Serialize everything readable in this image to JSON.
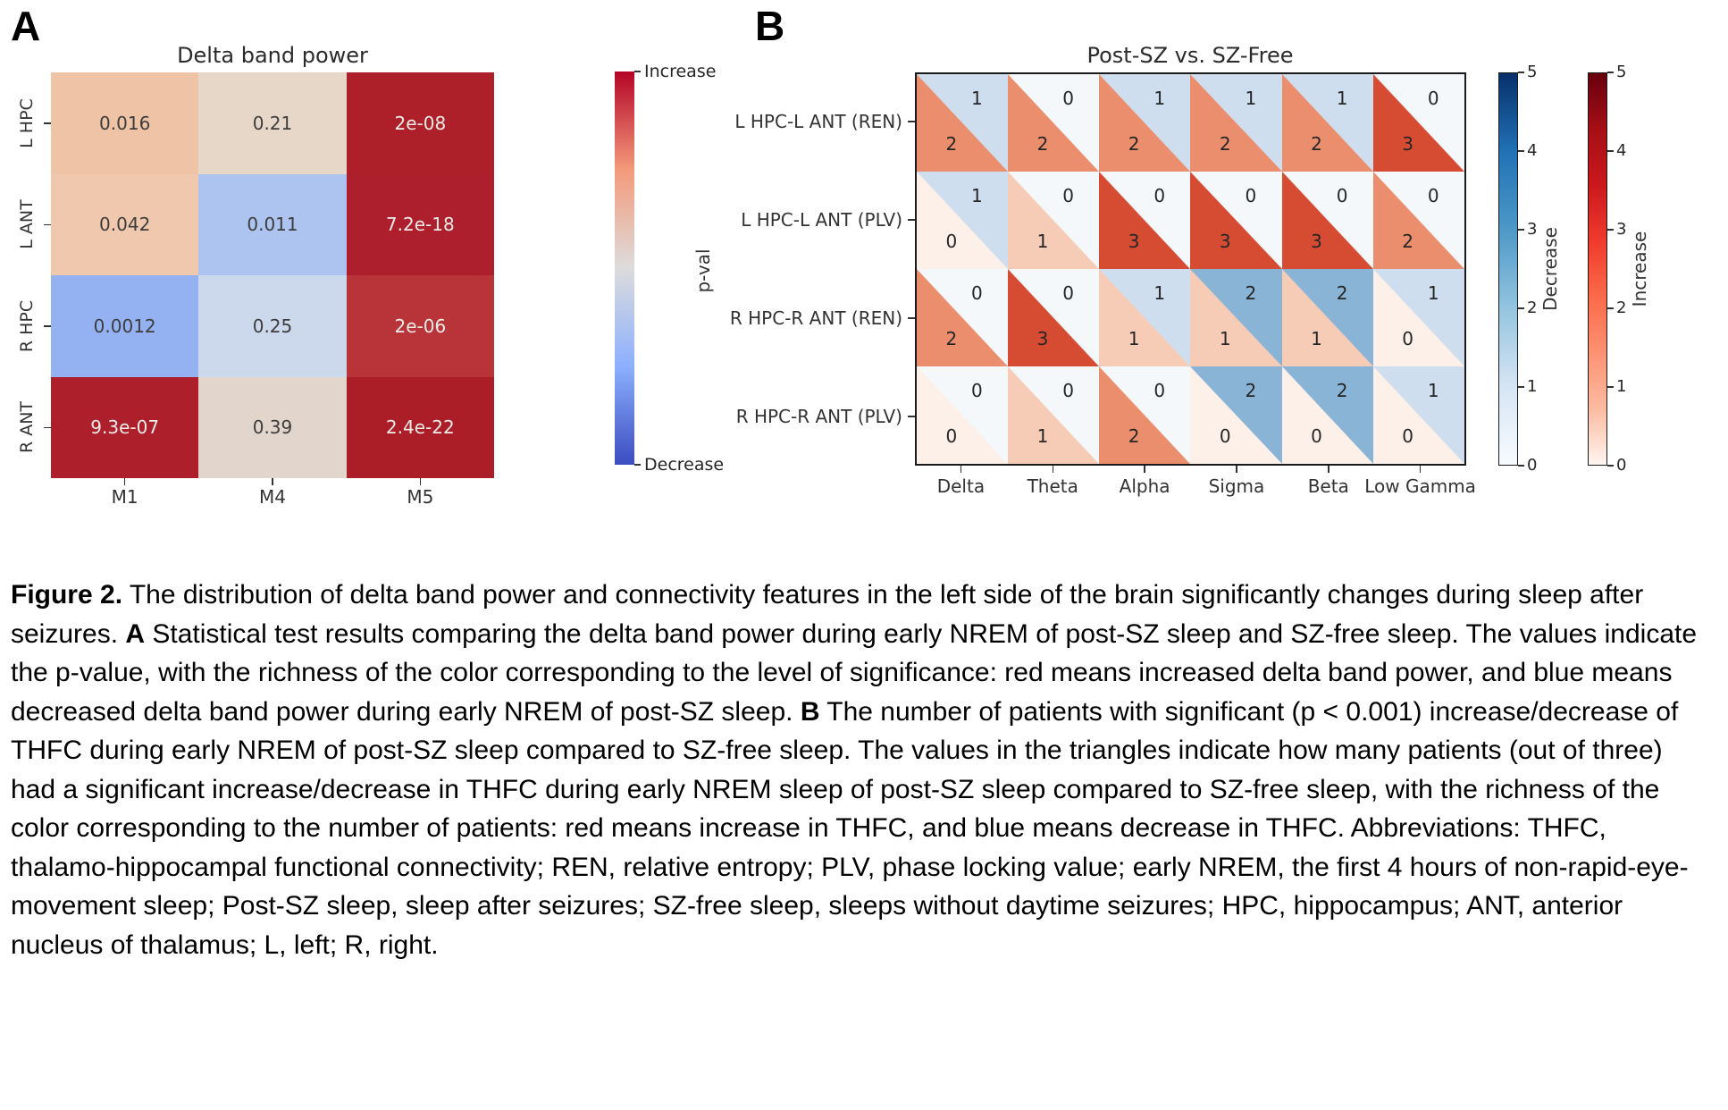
{
  "figure": {
    "panel_a_label": "A",
    "panel_b_label": "B"
  },
  "chart_data": [
    {
      "type": "heatmap",
      "panel": "A",
      "title": "Delta band power",
      "rows": [
        "L HPC",
        "L ANT",
        "R HPC",
        "R ANT"
      ],
      "cols": [
        "M1",
        "M4",
        "M5"
      ],
      "values": [
        [
          "0.016",
          "0.21",
          "2e-08"
        ],
        [
          "0.042",
          "0.011",
          "7.2e-18"
        ],
        [
          "0.0012",
          "0.25",
          "2e-06"
        ],
        [
          "9.3e-07",
          "0.39",
          "2.4e-22"
        ]
      ],
      "cell_colors": [
        [
          "#efc3a6",
          "#e7d7c9",
          "#ad2029"
        ],
        [
          "#f0c8ae",
          "#aec4f0",
          "#ad1f2c"
        ],
        [
          "#94b2f2",
          "#ccd8ec",
          "#b83439"
        ],
        [
          "#ae1f2c",
          "#e2d5cb",
          "#ab1e28"
        ]
      ],
      "cell_text_colors": [
        [
          "#3d3d3d",
          "#3d3d3d",
          "#f2ece9"
        ],
        [
          "#3d3d3d",
          "#3d3d3d",
          "#f2ece9"
        ],
        [
          "#3d3d3d",
          "#3d3d3d",
          "#f2ece9"
        ],
        [
          "#f2ece9",
          "#3d3d3d",
          "#f2ece9"
        ]
      ],
      "colorbar": {
        "top_label": "Increase",
        "bottom_label": "Decrease",
        "axis_label": "p-val",
        "gradient": [
          "#b40426",
          "#f49a7b",
          "#dddcdc",
          "#8cb0fe",
          "#3b4cc0"
        ]
      }
    },
    {
      "type": "split-heatmap",
      "panel": "B",
      "title": "Post-SZ vs. SZ-Free",
      "rows": [
        "L HPC-L ANT (REN)",
        "L HPC-L ANT (PLV)",
        "R HPC-R ANT (REN)",
        "R HPC-R ANT (PLV)"
      ],
      "cols": [
        "Delta",
        "Theta",
        "Alpha",
        "Sigma",
        "Beta",
        "Low Gamma"
      ],
      "series": [
        {
          "name": "increase_counts",
          "values": [
            [
              2,
              2,
              2,
              2,
              2,
              3
            ],
            [
              0,
              1,
              3,
              3,
              3,
              2
            ],
            [
              2,
              3,
              1,
              1,
              1,
              0
            ],
            [
              0,
              1,
              2,
              0,
              0,
              0
            ]
          ]
        },
        {
          "name": "decrease_counts",
          "values": [
            [
              1,
              0,
              1,
              1,
              1,
              0
            ],
            [
              1,
              0,
              0,
              0,
              0,
              0
            ],
            [
              0,
              0,
              1,
              2,
              2,
              1
            ],
            [
              0,
              0,
              0,
              2,
              2,
              1
            ]
          ]
        }
      ],
      "increase_palette": [
        "#fdf0e8",
        "#f6ccb6",
        "#ea8e6d",
        "#d54c33",
        "#b51f20",
        "#7f0c12"
      ],
      "decrease_palette": [
        "#f4f8fb",
        "#cfdeee",
        "#89b4d6",
        "#4c97c8",
        "#2070b4",
        "#09386f"
      ],
      "value_range": [
        0,
        5
      ],
      "colorbars": [
        {
          "label": "Decrease",
          "ticks": [
            "0",
            "1",
            "2",
            "3",
            "4",
            "5"
          ],
          "gradient": [
            "#08306b",
            "#2171b5",
            "#4d99c7",
            "#94c4df",
            "#d6e5f4",
            "#f7fbff"
          ]
        },
        {
          "label": "Increase",
          "ticks": [
            "0",
            "1",
            "2",
            "3",
            "4",
            "5"
          ],
          "gradient": [
            "#67000d",
            "#a50f15",
            "#cb181d",
            "#ef3b2c",
            "#fb6a4a",
            "#fc9272",
            "#fcbba1",
            "#fff5f0"
          ]
        }
      ]
    }
  ],
  "caption": {
    "segments": [
      {
        "b": true,
        "t": "Figure 2."
      },
      {
        "b": false,
        "t": " The distribution of delta band power and connectivity features in the left side of the brain significantly changes during sleep after seizures. "
      },
      {
        "b": true,
        "t": "A"
      },
      {
        "b": false,
        "t": " Statistical test results comparing the delta band power during early NREM of post-SZ sleep and SZ-free sleep. The values indicate the p-value, with the richness of the color corresponding to the level of significance: red means increased delta band power, and blue means decreased delta band power during early NREM of post-SZ sleep. "
      },
      {
        "b": true,
        "t": "B"
      },
      {
        "b": false,
        "t": " The number of patients with significant (p < 0.001) increase/decrease of THFC during early NREM of post-SZ sleep compared to SZ-free sleep. The values in the triangles indicate how many patients (out of three) had a significant increase/decrease in THFC during early NREM sleep of post-SZ sleep compared to SZ-free sleep, with the richness of the color corresponding to the number of patients: red means increase in THFC, and blue means decrease in THFC.  Abbreviations: THFC, thalamo-hippocampal functional connectivity; REN, relative entropy; PLV, phase locking value; early NREM, the first 4 hours of non-rapid-eye-movement sleep; Post-SZ sleep, sleep after seizures; SZ-free sleep, sleeps without daytime seizures; HPC, hippocampus; ANT, anterior nucleus of thalamus; L, left; R, right."
      }
    ]
  }
}
